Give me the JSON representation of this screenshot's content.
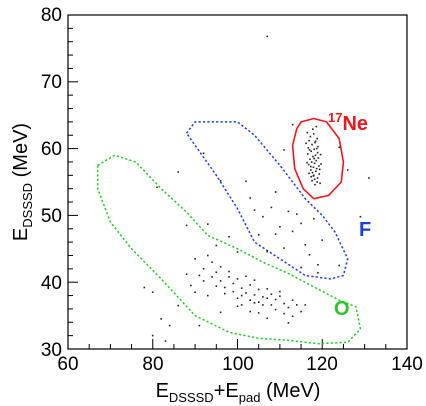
{
  "chart_data": {
    "type": "scatter",
    "xlabel": {
      "base": "E",
      "sub1": "DSSSD",
      "mid": "+E",
      "sub2": "pad",
      "unit": " (MeV)"
    },
    "ylabel": {
      "base": "E",
      "sub": "DSSSD",
      "unit": " (MeV)"
    },
    "xlim": [
      60,
      140
    ],
    "ylim": [
      30,
      80
    ],
    "x_ticks": [
      "60",
      "80",
      "100",
      "120",
      "140"
    ],
    "y_ticks": [
      "30",
      "40",
      "50",
      "60",
      "70",
      "80"
    ],
    "x_tick_values": [
      60,
      80,
      100,
      120,
      140
    ],
    "y_tick_values": [
      30,
      40,
      50,
      60,
      70,
      80
    ],
    "grid": false,
    "regions": [
      {
        "sup": "17",
        "label": "Ne",
        "color": "#e8191e",
        "style": "solid",
        "polygon": [
          [
            115,
            64
          ],
          [
            118,
            64.5
          ],
          [
            121,
            64
          ],
          [
            124,
            61.5
          ],
          [
            125,
            58
          ],
          [
            124.5,
            55
          ],
          [
            121.5,
            53
          ],
          [
            118,
            52.5
          ],
          [
            115.5,
            54
          ],
          [
            113.5,
            57
          ],
          [
            113,
            60.5
          ],
          [
            114,
            63
          ]
        ]
      },
      {
        "label": "F",
        "color": "#1f3ddb",
        "style": "dotted",
        "polygon": [
          [
            88,
            62.3
          ],
          [
            90,
            64
          ],
          [
            100,
            64
          ],
          [
            104,
            62
          ],
          [
            110,
            57.5
          ],
          [
            116,
            52.5
          ],
          [
            120,
            50
          ],
          [
            123,
            47.5
          ],
          [
            126,
            43.5
          ],
          [
            125,
            41
          ],
          [
            122,
            40.5
          ],
          [
            116,
            41
          ],
          [
            110,
            43.5
          ],
          [
            104,
            46
          ],
          [
            100,
            51
          ],
          [
            95,
            56
          ],
          [
            90,
            60.5
          ]
        ]
      },
      {
        "label": "O",
        "color": "#2bc62b",
        "style": "dotted",
        "polygon": [
          [
            67,
            57.5
          ],
          [
            71,
            59
          ],
          [
            76,
            58
          ],
          [
            82,
            54
          ],
          [
            88,
            50.5
          ],
          [
            93,
            47
          ],
          [
            100,
            45
          ],
          [
            106,
            43
          ],
          [
            112,
            41.3
          ],
          [
            118,
            39.3
          ],
          [
            124,
            37.3
          ],
          [
            128,
            36.3
          ],
          [
            129,
            33
          ],
          [
            126,
            31
          ],
          [
            119,
            30.8
          ],
          [
            112,
            31.3
          ],
          [
            105,
            31.6
          ],
          [
            98,
            32.5
          ],
          [
            90,
            35
          ],
          [
            82,
            40.5
          ],
          [
            75,
            45
          ],
          [
            70,
            49
          ],
          [
            67,
            54
          ]
        ]
      }
    ],
    "events": {
      "ne_cluster": [
        [
          116.5,
          62.4
        ],
        [
          118.0,
          62.2
        ],
        [
          117.2,
          61.8
        ],
        [
          118.8,
          61.5
        ],
        [
          116.9,
          61.2
        ],
        [
          118.3,
          60.9
        ],
        [
          117.6,
          60.6
        ],
        [
          119.0,
          60.3
        ],
        [
          116.7,
          60.1
        ],
        [
          118.1,
          59.9
        ],
        [
          117.4,
          59.6
        ],
        [
          118.9,
          59.4
        ],
        [
          116.6,
          59.2
        ],
        [
          118.4,
          59.0
        ],
        [
          117.8,
          58.8
        ],
        [
          119.1,
          58.6
        ],
        [
          117.1,
          58.4
        ],
        [
          118.6,
          58.2
        ],
        [
          117.5,
          58.0
        ],
        [
          118.2,
          57.8
        ],
        [
          116.8,
          57.6
        ],
        [
          119.2,
          57.4
        ],
        [
          117.9,
          57.2
        ],
        [
          118.7,
          57.0
        ],
        [
          117.3,
          56.8
        ],
        [
          118.5,
          56.6
        ],
        [
          117.7,
          56.4
        ],
        [
          119.3,
          56.2
        ],
        [
          118.0,
          56.0
        ],
        [
          117.4,
          55.8
        ],
        [
          118.9,
          55.6
        ],
        [
          118.2,
          55.4
        ],
        [
          117.6,
          55.2
        ],
        [
          118.8,
          55.0
        ],
        [
          119.5,
          54.8
        ],
        [
          118.3,
          54.6
        ],
        [
          117.8,
          62.9
        ],
        [
          116.2,
          60.8
        ],
        [
          119.6,
          59.1
        ],
        [
          116.4,
          57.9
        ],
        [
          119.7,
          57.7
        ],
        [
          116.9,
          56.3
        ],
        [
          118.6,
          63.3
        ],
        [
          117.0,
          59.8
        ],
        [
          118.1,
          58.5
        ],
        [
          119.4,
          56.9
        ],
        [
          117.3,
          57.3
        ],
        [
          118.4,
          61.1
        ],
        [
          117.9,
          55.9
        ],
        [
          118.7,
          60.0
        ]
      ],
      "o_cluster": [
        [
          90,
          43.5
        ],
        [
          92,
          42
        ],
        [
          94,
          43
        ],
        [
          91,
          41
        ],
        [
          93,
          44
        ],
        [
          95,
          41.5
        ],
        [
          96,
          40.2
        ],
        [
          98,
          40.8
        ],
        [
          97,
          39.2
        ],
        [
          99,
          39.8
        ],
        [
          100,
          40.5
        ],
        [
          101,
          39.1
        ],
        [
          102,
          38.4
        ],
        [
          103,
          39.6
        ],
        [
          104,
          38.1
        ],
        [
          105,
          38.9
        ],
        [
          106,
          37.8
        ],
        [
          107,
          39.0
        ],
        [
          108,
          38.2
        ],
        [
          109,
          37.4
        ],
        [
          110,
          37.9
        ],
        [
          111,
          36.8
        ],
        [
          112,
          36.2
        ],
        [
          113,
          37.3
        ],
        [
          114,
          36.6
        ],
        [
          103,
          37.3
        ],
        [
          104,
          36.9
        ],
        [
          99,
          38.6
        ],
        [
          100,
          37.6
        ],
        [
          101,
          38.0
        ],
        [
          97,
          38.3
        ],
        [
          106,
          36.6
        ],
        [
          105,
          37.0
        ],
        [
          108,
          36.6
        ],
        [
          92,
          40.2
        ],
        [
          94,
          40.8
        ],
        [
          95,
          39.4
        ],
        [
          98,
          41.6
        ],
        [
          102,
          40.9
        ],
        [
          103,
          35.6
        ],
        [
          100,
          36.4
        ],
        [
          105,
          35.4
        ],
        [
          109,
          35.9
        ],
        [
          111,
          35.3
        ],
        [
          113,
          34.9
        ],
        [
          115,
          35.6
        ],
        [
          116,
          36.6
        ],
        [
          88,
          41.2
        ],
        [
          89,
          39.5
        ],
        [
          96,
          42.3
        ],
        [
          107,
          37.6
        ],
        [
          110,
          38.6
        ],
        [
          104,
          40.3
        ],
        [
          90,
          38.5
        ],
        [
          93,
          38.0
        ],
        [
          101,
          36.6
        ],
        [
          107,
          34.6
        ],
        [
          112,
          33.9
        ]
      ],
      "f_cluster": [
        [
          103,
          52.6
        ],
        [
          106,
          49.8
        ],
        [
          108,
          51.2
        ],
        [
          110,
          48.3
        ],
        [
          112,
          50.6
        ],
        [
          113,
          47.6
        ],
        [
          115,
          48.8
        ],
        [
          116,
          45.6
        ],
        [
          118,
          49.5
        ],
        [
          120,
          46.3
        ],
        [
          109,
          47.2
        ],
        [
          111,
          45.1
        ],
        [
          114,
          50.2
        ],
        [
          117,
          44.1
        ],
        [
          105,
          47.1
        ],
        [
          107,
          44.6
        ],
        [
          119,
          42.6
        ],
        [
          104,
          50.8
        ],
        [
          92,
          59.3
        ],
        [
          96,
          55.2
        ]
      ],
      "scattered": [
        [
          107,
          76.8
        ],
        [
          86,
          56.5
        ],
        [
          81,
          54.2
        ],
        [
          78,
          39.2
        ],
        [
          80,
          38.5
        ],
        [
          82,
          34.5
        ],
        [
          84,
          33.5
        ],
        [
          86,
          36.5
        ],
        [
          80,
          32
        ],
        [
          83,
          31.2
        ],
        [
          91,
          33.5
        ],
        [
          96,
          35.5
        ],
        [
          88,
          48.5
        ],
        [
          102,
          55.1
        ],
        [
          109,
          53.5
        ],
        [
          111,
          59.8
        ],
        [
          113,
          63.6
        ],
        [
          126,
          56.8
        ],
        [
          124,
          60.2
        ],
        [
          131,
          55.6
        ],
        [
          129,
          49.8
        ],
        [
          124,
          42.5
        ],
        [
          119,
          41.4
        ],
        [
          98,
          46.8
        ],
        [
          100,
          44.5
        ],
        [
          95,
          45.5
        ],
        [
          93,
          48.7
        ],
        [
          115,
          42.2
        ]
      ]
    }
  }
}
